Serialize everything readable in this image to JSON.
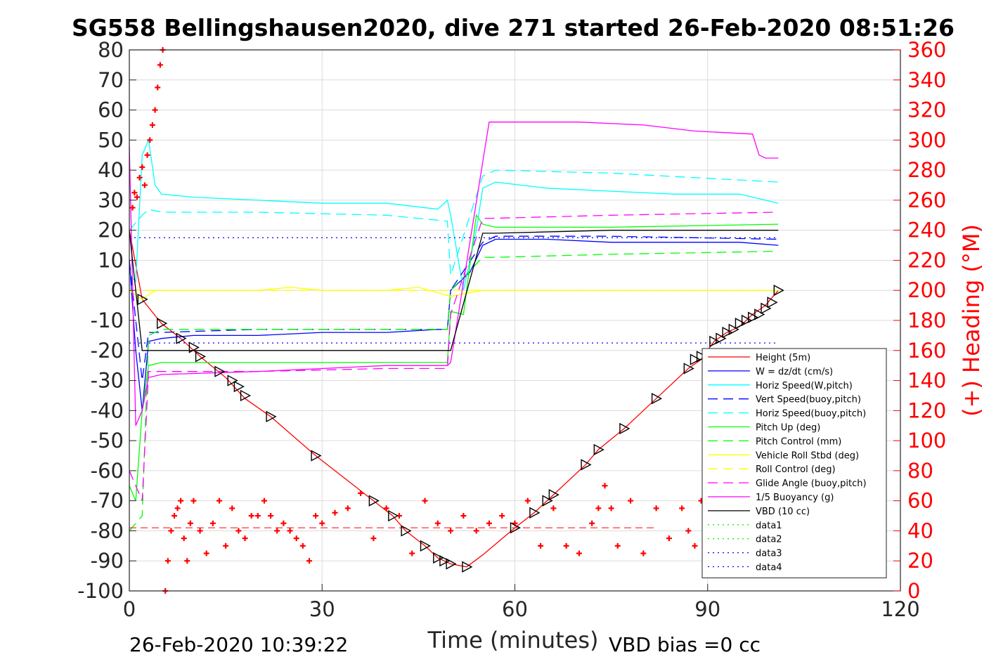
{
  "title": "SG558 Bellingshausen2020, dive 271 started 26-Feb-2020 08:51:26",
  "footer": {
    "timestamp": "26-Feb-2020 10:39:22",
    "vbd_bias": "VBD bias =0 cc"
  },
  "colors": {
    "height": "#ff0000",
    "w": "#0000ff",
    "horiz_speed": "#00ffff",
    "pitch": "#00ff00",
    "roll": "#ffff00",
    "glide": "#ff00ff",
    "buoyancy": "#ff00ff",
    "vbd": "#000000",
    "heading": "#ff0000"
  },
  "chart_data": {
    "type": "line",
    "title": "SG558 Bellingshausen2020, dive 271 started 26-Feb-2020 08:51:26",
    "xlabel": "Time (minutes)",
    "ylabel": "",
    "y2label": "(+) Heading (°M)",
    "xlim": [
      0,
      120
    ],
    "ylim": [
      -100,
      80
    ],
    "y2lim": [
      0,
      360
    ],
    "x_ticks": [
      "0",
      "30",
      "60",
      "90",
      "120"
    ],
    "y_ticks": [
      "80",
      "70",
      "60",
      "50",
      "40",
      "30",
      "20",
      "10",
      "0",
      "-10",
      "-20",
      "-30",
      "-40",
      "-50",
      "-60",
      "-70",
      "-80",
      "-90",
      "-100"
    ],
    "y2_ticks": [
      "360",
      "340",
      "320",
      "300",
      "280",
      "260",
      "240",
      "220",
      "200",
      "180",
      "160",
      "140",
      "120",
      "100",
      "80",
      "60",
      "40",
      "20",
      "0"
    ],
    "grid": true,
    "legend_position": "bottom-right",
    "series": [
      {
        "name": "Height (5m)",
        "style": "solid",
        "color": "#ff0000",
        "x": [
          0,
          2,
          5,
          8,
          11,
          15,
          18,
          22,
          29,
          38,
          41,
          43,
          46,
          48,
          49,
          50,
          52.5,
          55,
          60,
          63,
          66,
          71,
          73,
          77,
          82,
          87,
          89,
          91,
          93,
          95,
          97,
          99,
          101
        ],
        "y": [
          20,
          -3,
          -11,
          -16,
          -22,
          -29,
          -36,
          -42,
          -55,
          -70,
          -75,
          -80,
          -85,
          -89,
          -90,
          -91,
          -92,
          -88,
          -79,
          -74,
          -68,
          -58,
          -53,
          -46,
          -36,
          -26,
          -23,
          -17,
          -14,
          -12,
          -8,
          -5,
          0
        ]
      },
      {
        "name": "W = dz/dt (cm/s)",
        "style": "solid",
        "color": "#0000ff",
        "x": [
          0,
          1,
          2,
          3,
          5,
          10,
          20,
          30,
          40,
          48,
          49.5,
          50,
          53,
          55,
          57,
          65,
          75,
          85,
          95,
          101
        ],
        "y": [
          10,
          -20,
          -40,
          -17,
          -16,
          -15,
          -15,
          -14,
          -14,
          -13,
          -13,
          0,
          6,
          15,
          17,
          17,
          16,
          16,
          16,
          15
        ]
      },
      {
        "name": "Horiz Speed(W,pitch)",
        "style": "solid",
        "color": "#00ffff",
        "x": [
          0,
          1,
          2,
          3,
          4,
          5,
          10,
          20,
          30,
          40,
          48,
          49.5,
          50,
          52,
          54,
          55,
          57,
          65,
          75,
          85,
          95,
          101
        ],
        "y": [
          5,
          3,
          45,
          50,
          35,
          32,
          31,
          30,
          29,
          29,
          27,
          30,
          25,
          0,
          20,
          34,
          36,
          34,
          33,
          32,
          32,
          29
        ]
      },
      {
        "name": "Vert Speed(buoy,pitch)",
        "style": "dashed",
        "color": "#0000ff",
        "x": [
          0,
          2,
          3,
          5,
          20,
          40,
          49.5,
          50,
          55,
          57,
          75,
          101
        ],
        "y": [
          10,
          -30,
          -14,
          -14,
          -13,
          -13,
          -13,
          0,
          16,
          18,
          18,
          17
        ]
      },
      {
        "name": "Horiz Speed(buoy,pitch)",
        "style": "dashed",
        "color": "#00ffff",
        "x": [
          0,
          2,
          3,
          5,
          20,
          40,
          49.5,
          50,
          55,
          57,
          75,
          101
        ],
        "y": [
          20,
          25,
          27,
          26,
          26,
          25,
          23,
          5,
          38,
          40,
          39,
          36
        ]
      },
      {
        "name": "Pitch Up (deg)",
        "style": "solid",
        "color": "#00ff00",
        "x": [
          0,
          1,
          2,
          3,
          5,
          20,
          40,
          49.5,
          50,
          52,
          54,
          55,
          57,
          75,
          101
        ],
        "y": [
          -65,
          -70,
          -40,
          -25,
          -24,
          -24,
          -24,
          -24,
          -7,
          -8,
          25,
          22,
          21,
          21,
          22
        ]
      },
      {
        "name": "Pitch Control (mm)",
        "style": "dashed",
        "color": "#00ff00",
        "x": [
          0,
          2,
          3,
          5,
          20,
          40,
          49.5,
          50,
          55,
          57,
          75,
          101
        ],
        "y": [
          -80,
          -75,
          -15,
          -13,
          -13,
          -13,
          -13,
          0,
          11,
          11,
          12,
          13
        ]
      },
      {
        "name": "Vehicle Roll Stbd (deg)",
        "style": "solid",
        "color": "#ffff00",
        "x": [
          0,
          2,
          4,
          5,
          10,
          15,
          20,
          25,
          30,
          40,
          45,
          50,
          55,
          60,
          65,
          70,
          80,
          90,
          101
        ],
        "y": [
          0,
          -3,
          0,
          0,
          0,
          0,
          0,
          1,
          0,
          0,
          1,
          -2,
          0,
          0,
          0,
          0,
          0,
          0,
          0
        ]
      },
      {
        "name": "Roll Control (deg)",
        "style": "dashed",
        "color": "#ffff00",
        "x": [
          0,
          5,
          20,
          40,
          50,
          60,
          80,
          101
        ],
        "y": [
          0,
          0,
          0,
          0,
          0,
          0,
          0,
          0
        ]
      },
      {
        "name": "Glide Angle (buoy,pitch)",
        "style": "dashed",
        "color": "#ff00ff",
        "x": [
          0,
          2,
          3,
          5,
          20,
          40,
          49.5,
          50,
          55,
          57,
          75,
          101
        ],
        "y": [
          -60,
          -70,
          -27,
          -27,
          -27,
          -26,
          -26,
          -8,
          24,
          24,
          25,
          26
        ]
      },
      {
        "name": "1/5 Buoyancy (g)",
        "style": "solid",
        "color": "#ff00ff",
        "x": [
          0,
          1,
          2,
          3,
          5,
          20,
          40,
          49.5,
          50,
          56,
          60,
          70,
          80,
          88,
          97,
          98,
          99,
          101
        ],
        "y": [
          48,
          -45,
          -40,
          -29,
          -28,
          -27,
          -25,
          -25,
          -24,
          56,
          56,
          56,
          55,
          53,
          52,
          45,
          44,
          44
        ]
      },
      {
        "name": "VBD (10 cc)",
        "style": "solid",
        "color": "#000000",
        "x": [
          0,
          1,
          2,
          5,
          20,
          40,
          49.5,
          50,
          55,
          57,
          75,
          101
        ],
        "y": [
          20,
          0,
          -20,
          -20,
          -20,
          -20,
          -20,
          -20,
          19,
          19,
          20,
          20
        ]
      },
      {
        "name": "data1",
        "style": "dotted",
        "color": "#00ff00",
        "x": [],
        "y": []
      },
      {
        "name": "data2",
        "style": "dotted",
        "color": "#00ff00",
        "x": [],
        "y": []
      },
      {
        "name": "data3",
        "style": "dotted",
        "color": "#0000ff",
        "x": [
          0,
          101
        ],
        "y": [
          17.5,
          17.5
        ]
      },
      {
        "name": "data4",
        "style": "dotted",
        "color": "#0000ff",
        "x": [
          0,
          101
        ],
        "y": [
          -17.5,
          -17.5
        ]
      }
    ],
    "heading": {
      "axis": "right",
      "marker": "+",
      "color": "#ff0000",
      "x": [
        0.5,
        0.8,
        1.2,
        1.6,
        2.0,
        2.4,
        2.8,
        3.2,
        3.6,
        4.0,
        4.4,
        4.8,
        5.2,
        5.6,
        6.0,
        6.5,
        7.0,
        7.5,
        8.0,
        8.5,
        9.0,
        9.5,
        10,
        11,
        12,
        13,
        14,
        15,
        16,
        17,
        18,
        19,
        20,
        21,
        22,
        23,
        24,
        25,
        26,
        27,
        28,
        29,
        30,
        32,
        34,
        36,
        38,
        40,
        42,
        44,
        46,
        48,
        50,
        52,
        54,
        56,
        58,
        60,
        62,
        64,
        66,
        68,
        70,
        72,
        73,
        74,
        75,
        76,
        78,
        80,
        82,
        84,
        86,
        87,
        88,
        89
      ],
      "y": [
        255,
        265,
        262,
        275,
        282,
        270,
        290,
        300,
        310,
        320,
        335,
        350,
        360,
        0,
        20,
        40,
        50,
        55,
        60,
        35,
        20,
        45,
        60,
        40,
        25,
        45,
        60,
        30,
        55,
        40,
        35,
        50,
        50,
        60,
        50,
        40,
        45,
        40,
        35,
        30,
        20,
        50,
        45,
        52,
        55,
        65,
        35,
        55,
        50,
        25,
        60,
        45,
        40,
        50,
        40,
        45,
        50,
        45,
        60,
        30,
        55,
        30,
        25,
        45,
        55,
        70,
        55,
        30,
        60,
        25,
        55,
        35,
        55,
        40,
        30,
        60
      ]
    },
    "heading_reference": {
      "y2": 42
    },
    "gps_markers": {
      "marker": "triangle",
      "x": [
        2,
        5,
        8,
        10,
        11,
        14,
        16,
        17,
        18,
        22,
        29,
        38,
        41,
        43,
        46,
        48,
        49,
        50,
        52.5,
        60,
        63,
        65,
        66,
        71,
        73,
        77,
        82,
        87,
        88,
        89,
        91,
        92,
        93,
        94,
        95,
        96,
        97,
        98,
        99,
        100,
        101
      ],
      "y": [
        -3,
        -11,
        -16,
        -19,
        -22,
        -27,
        -30,
        -32,
        -35,
        -42,
        -55,
        -70,
        -75,
        -80,
        -85,
        -89,
        -90,
        -91,
        -92,
        -79,
        -74,
        -70,
        -68,
        -58,
        -53,
        -46,
        -36,
        -26,
        -23,
        -22,
        -17,
        -16,
        -14,
        -13,
        -11,
        -10,
        -9,
        -8,
        -6,
        -4,
        0
      ]
    }
  }
}
